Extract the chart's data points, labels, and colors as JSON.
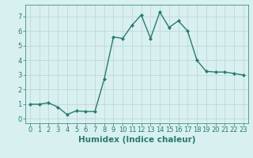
{
  "x": [
    0,
    1,
    2,
    3,
    4,
    5,
    6,
    7,
    8,
    9,
    10,
    11,
    12,
    13,
    14,
    15,
    16,
    17,
    18,
    19,
    20,
    21,
    22,
    23
  ],
  "y": [
    1.0,
    1.0,
    1.1,
    0.8,
    0.3,
    0.55,
    0.5,
    0.5,
    2.7,
    5.6,
    5.5,
    6.4,
    7.1,
    5.5,
    7.3,
    6.25,
    6.7,
    6.0,
    4.0,
    3.25,
    3.2,
    3.2,
    3.1,
    3.0
  ],
  "line_color": "#2a7a6f",
  "marker": "D",
  "marker_size": 2.0,
  "bg_color": "#d8f0f0",
  "grid_color": "#c0d8d8",
  "xlabel": "Humidex (Indice chaleur)",
  "xlim": [
    -0.5,
    23.5
  ],
  "ylim": [
    -0.3,
    7.8
  ],
  "yticks": [
    0,
    1,
    2,
    3,
    4,
    5,
    6,
    7
  ],
  "xticks": [
    0,
    1,
    2,
    3,
    4,
    5,
    6,
    7,
    8,
    9,
    10,
    11,
    12,
    13,
    14,
    15,
    16,
    17,
    18,
    19,
    20,
    21,
    22,
    23
  ],
  "tick_color": "#2a7a6f",
  "label_color": "#2a7a6f",
  "xlabel_fontsize": 7.5,
  "tick_fontsize": 6.0,
  "linewidth": 1.0
}
